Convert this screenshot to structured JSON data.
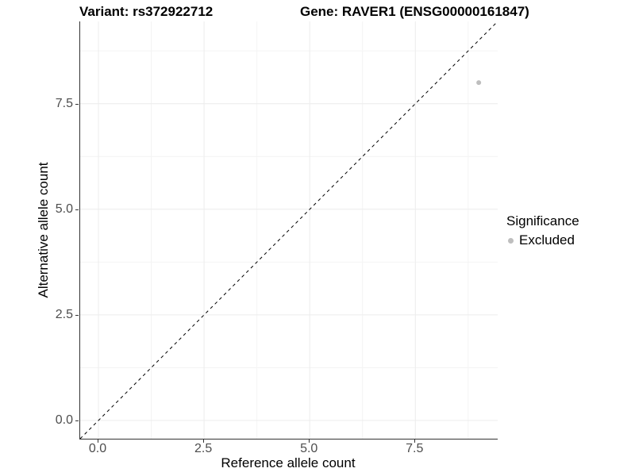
{
  "titles": {
    "left": "Variant: rs372922712",
    "right": "Gene: RAVER1 (ENSG00000161847)"
  },
  "axes": {
    "x": {
      "label": "Reference allele count",
      "ticks": [
        {
          "value": 0,
          "label": "0.0"
        },
        {
          "value": 2.5,
          "label": "2.5"
        },
        {
          "value": 5,
          "label": "5.0"
        },
        {
          "value": 7.5,
          "label": "7.5"
        }
      ],
      "minor_ticks": [
        1.25,
        3.75,
        6.25,
        8.75
      ]
    },
    "y": {
      "label": "Alternative allele count",
      "ticks": [
        {
          "value": 0,
          "label": "0.0"
        },
        {
          "value": 2.5,
          "label": "2.5"
        },
        {
          "value": 5,
          "label": "5.0"
        },
        {
          "value": 7.5,
          "label": "7.5"
        }
      ],
      "minor_ticks": [
        1.25,
        3.75,
        6.25,
        8.75
      ]
    }
  },
  "legend": {
    "title": "Significance",
    "items": [
      {
        "label": "Excluded",
        "color": "#bebebe"
      }
    ]
  },
  "chart_data": {
    "type": "scatter",
    "title": "Variant: rs372922712   Gene: RAVER1 (ENSG00000161847)",
    "xlabel": "Reference allele count",
    "ylabel": "Alternative allele count",
    "xlim": [
      -0.432,
      9.448
    ],
    "ylim": [
      -0.432,
      9.448
    ],
    "x_ticks": [
      0,
      2.5,
      5,
      7.5
    ],
    "y_ticks": [
      0,
      2.5,
      5,
      7.5
    ],
    "grid": true,
    "legend_position": "right",
    "legend_title": "Significance",
    "series": [
      {
        "name": "Excluded",
        "color": "#bebebe",
        "points": [
          {
            "x": 9,
            "y": 8
          }
        ]
      }
    ],
    "reference_line": {
      "type": "identity",
      "slope": 1,
      "intercept": 0,
      "style": "dashed",
      "color": "#000000"
    }
  },
  "style": {
    "point_color": "#bebebe",
    "point_radius": 3,
    "major_grid_color": "#ececec",
    "minor_grid_color": "#f4f4f4",
    "axis_line_color": "#333333",
    "tick_label_color": "#4d4d4d"
  }
}
